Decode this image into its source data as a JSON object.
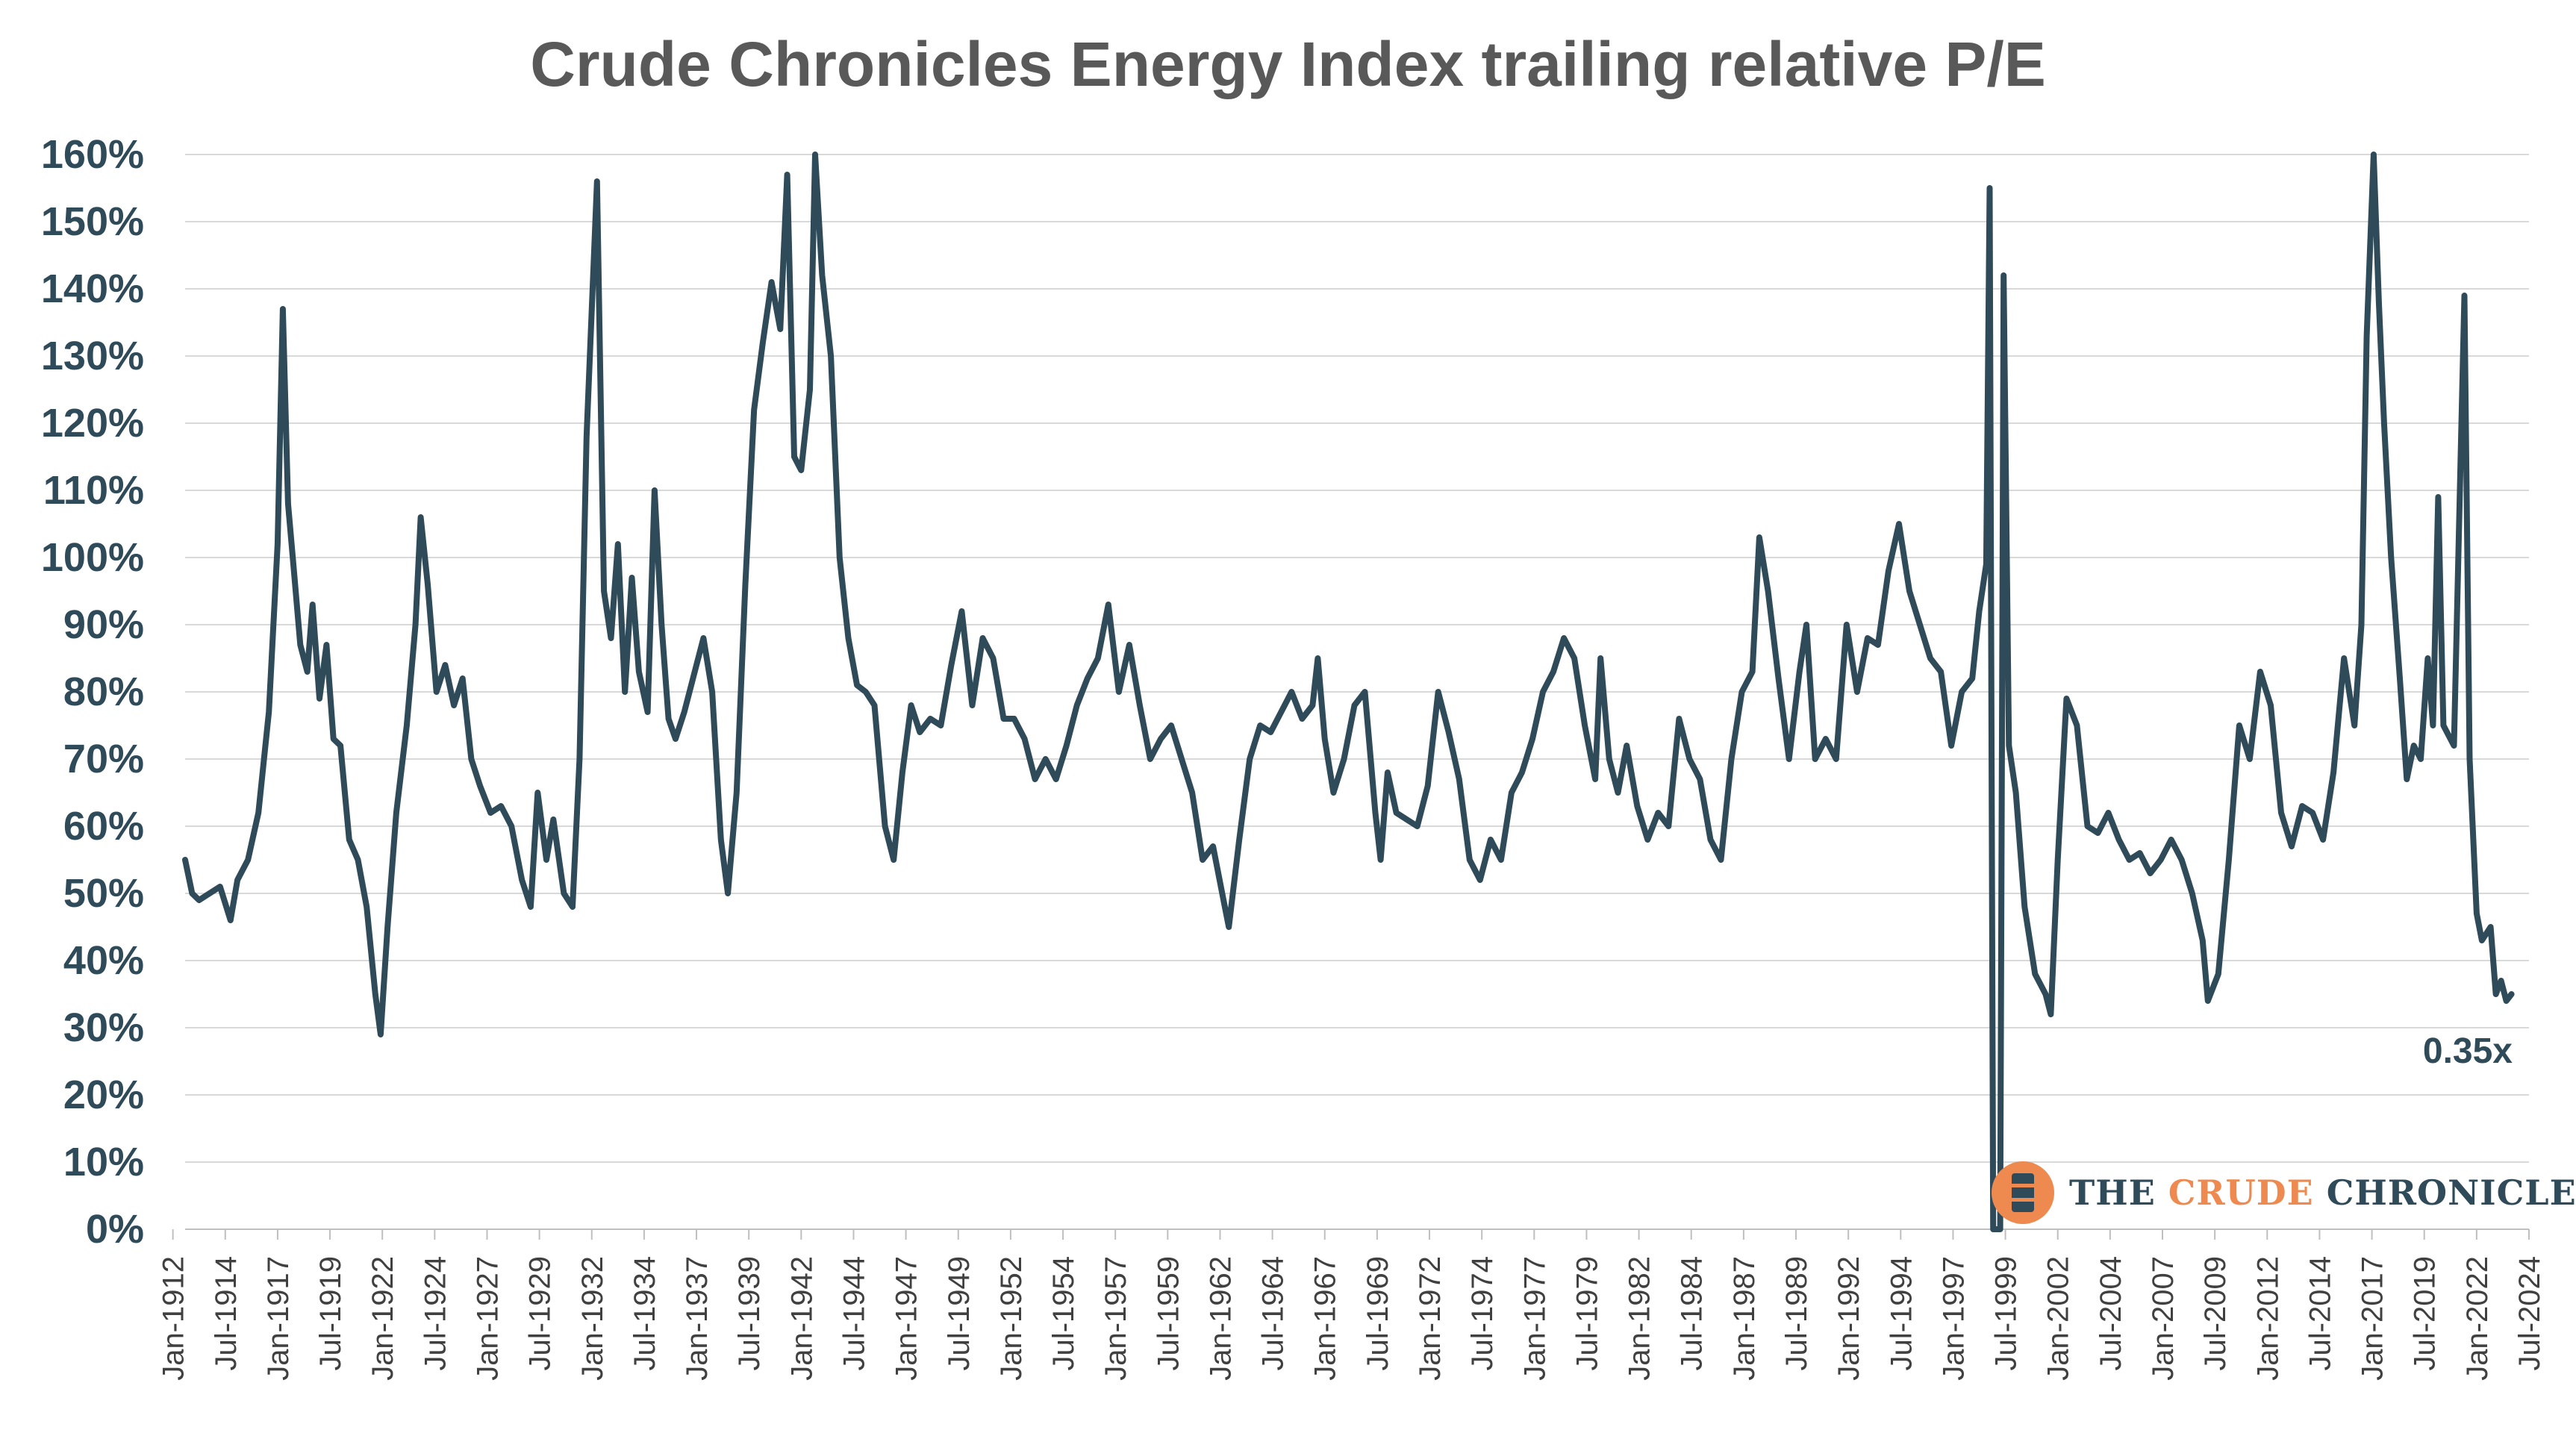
{
  "chart_data": {
    "type": "line",
    "title": "Crude Chronicles Energy Index trailing relative P/E",
    "xlabel": "",
    "ylabel": "",
    "ylim": [
      0,
      1.6
    ],
    "y_tick_labels": [
      "0%",
      "10%",
      "20%",
      "30%",
      "40%",
      "50%",
      "60%",
      "70%",
      "80%",
      "90%",
      "100%",
      "110%",
      "120%",
      "130%",
      "140%",
      "150%",
      "160%"
    ],
    "x_tick_labels": [
      "Jan-1912",
      "Jul-1914",
      "Jan-1917",
      "Jul-1919",
      "Jan-1922",
      "Jul-1924",
      "Jan-1927",
      "Jul-1929",
      "Jan-1932",
      "Jul-1934",
      "Jan-1937",
      "Jul-1939",
      "Jan-1942",
      "Jul-1944",
      "Jan-1947",
      "Jul-1949",
      "Jan-1952",
      "Jul-1954",
      "Jan-1957",
      "Jul-1959",
      "Jan-1962",
      "Jul-1964",
      "Jan-1967",
      "Jul-1969",
      "Jan-1972",
      "Jul-1974",
      "Jan-1977",
      "Jul-1979",
      "Jan-1982",
      "Jul-1984",
      "Jan-1987",
      "Jul-1989",
      "Jan-1992",
      "Jul-1994",
      "Jan-1997",
      "Jul-1999",
      "Jan-2002",
      "Jul-2004",
      "Jan-2007",
      "Jul-2009",
      "Jan-2012",
      "Jul-2014",
      "Jan-2017",
      "Jul-2019",
      "Jan-2022",
      "Jul-2024"
    ],
    "grid": true,
    "line_color": "#2f4a58",
    "annotation": "0.35x",
    "series": [
      {
        "values": [
          [
            "1912-08",
            0.55
          ],
          [
            "1912-12",
            0.5
          ],
          [
            "1913-04",
            0.49
          ],
          [
            "1913-10",
            0.5
          ],
          [
            "1914-04",
            0.51
          ],
          [
            "1914-10",
            0.46
          ],
          [
            "1915-02",
            0.52
          ],
          [
            "1915-08",
            0.55
          ],
          [
            "1916-02",
            0.62
          ],
          [
            "1916-08",
            0.77
          ],
          [
            "1917-01",
            1.02
          ],
          [
            "1917-04",
            1.37
          ],
          [
            "1917-07",
            1.08
          ],
          [
            "1917-10",
            0.99
          ],
          [
            "1918-02",
            0.87
          ],
          [
            "1918-06",
            0.83
          ],
          [
            "1918-09",
            0.93
          ],
          [
            "1919-01",
            0.79
          ],
          [
            "1919-05",
            0.87
          ],
          [
            "1919-09",
            0.73
          ],
          [
            "1920-01",
            0.72
          ],
          [
            "1920-06",
            0.58
          ],
          [
            "1920-11",
            0.55
          ],
          [
            "1921-04",
            0.48
          ],
          [
            "1921-09",
            0.35
          ],
          [
            "1921-12",
            0.29
          ],
          [
            "1922-04",
            0.45
          ],
          [
            "1922-09",
            0.62
          ],
          [
            "1923-03",
            0.75
          ],
          [
            "1923-08",
            0.9
          ],
          [
            "1923-11",
            1.06
          ],
          [
            "1924-03",
            0.96
          ],
          [
            "1924-08",
            0.8
          ],
          [
            "1925-01",
            0.84
          ],
          [
            "1925-06",
            0.78
          ],
          [
            "1925-11",
            0.82
          ],
          [
            "1926-04",
            0.7
          ],
          [
            "1926-09",
            0.66
          ],
          [
            "1927-03",
            0.62
          ],
          [
            "1927-09",
            0.63
          ],
          [
            "1928-03",
            0.6
          ],
          [
            "1928-09",
            0.52
          ],
          [
            "1929-02",
            0.48
          ],
          [
            "1929-06",
            0.65
          ],
          [
            "1929-11",
            0.55
          ],
          [
            "1930-03",
            0.61
          ],
          [
            "1930-09",
            0.5
          ],
          [
            "1931-02",
            0.48
          ],
          [
            "1931-06",
            0.7
          ],
          [
            "1931-10",
            1.18
          ],
          [
            "1932-04",
            1.56
          ],
          [
            "1932-08",
            0.95
          ],
          [
            "1932-12",
            0.88
          ],
          [
            "1933-04",
            1.02
          ],
          [
            "1933-08",
            0.8
          ],
          [
            "1933-12",
            0.97
          ],
          [
            "1934-04",
            0.83
          ],
          [
            "1934-09",
            0.77
          ],
          [
            "1935-01",
            1.1
          ],
          [
            "1935-05",
            0.9
          ],
          [
            "1935-09",
            0.76
          ],
          [
            "1936-01",
            0.73
          ],
          [
            "1936-06",
            0.77
          ],
          [
            "1936-12",
            0.83
          ],
          [
            "1937-05",
            0.88
          ],
          [
            "1937-10",
            0.8
          ],
          [
            "1938-03",
            0.58
          ],
          [
            "1938-07",
            0.5
          ],
          [
            "1938-12",
            0.65
          ],
          [
            "1939-05",
            0.96
          ],
          [
            "1939-10",
            1.22
          ],
          [
            "1940-03",
            1.32
          ],
          [
            "1940-08",
            1.41
          ],
          [
            "1941-01",
            1.34
          ],
          [
            "1941-05",
            1.57
          ],
          [
            "1941-09",
            1.15
          ],
          [
            "1942-01",
            1.13
          ],
          [
            "1942-06",
            1.25
          ],
          [
            "1942-09",
            1.6
          ],
          [
            "1943-01",
            1.42
          ],
          [
            "1943-06",
            1.3
          ],
          [
            "1943-11",
            1.0
          ],
          [
            "1944-04",
            0.88
          ],
          [
            "1944-09",
            0.81
          ],
          [
            "1945-02",
            0.8
          ],
          [
            "1945-07",
            0.78
          ],
          [
            "1946-01",
            0.6
          ],
          [
            "1946-06",
            0.55
          ],
          [
            "1946-11",
            0.68
          ],
          [
            "1947-04",
            0.78
          ],
          [
            "1947-09",
            0.74
          ],
          [
            "1948-03",
            0.76
          ],
          [
            "1948-09",
            0.75
          ],
          [
            "1949-03",
            0.84
          ],
          [
            "1949-09",
            0.92
          ],
          [
            "1950-03",
            0.78
          ],
          [
            "1950-09",
            0.88
          ],
          [
            "1951-03",
            0.85
          ],
          [
            "1951-09",
            0.76
          ],
          [
            "1952-03",
            0.76
          ],
          [
            "1952-09",
            0.73
          ],
          [
            "1953-03",
            0.67
          ],
          [
            "1953-09",
            0.7
          ],
          [
            "1954-03",
            0.67
          ],
          [
            "1954-09",
            0.72
          ],
          [
            "1955-03",
            0.78
          ],
          [
            "1955-09",
            0.82
          ],
          [
            "1956-03",
            0.85
          ],
          [
            "1956-09",
            0.93
          ],
          [
            "1957-03",
            0.8
          ],
          [
            "1957-09",
            0.87
          ],
          [
            "1958-03",
            0.78
          ],
          [
            "1958-09",
            0.7
          ],
          [
            "1959-03",
            0.73
          ],
          [
            "1959-09",
            0.75
          ],
          [
            "1960-03",
            0.7
          ],
          [
            "1960-09",
            0.65
          ],
          [
            "1961-03",
            0.55
          ],
          [
            "1961-09",
            0.57
          ],
          [
            "1962-03",
            0.49
          ],
          [
            "1962-06",
            0.45
          ],
          [
            "1962-12",
            0.58
          ],
          [
            "1963-06",
            0.7
          ],
          [
            "1963-12",
            0.75
          ],
          [
            "1964-06",
            0.74
          ],
          [
            "1964-12",
            0.77
          ],
          [
            "1965-06",
            0.8
          ],
          [
            "1965-12",
            0.76
          ],
          [
            "1966-06",
            0.78
          ],
          [
            "1966-09",
            0.85
          ],
          [
            "1967-01",
            0.73
          ],
          [
            "1967-06",
            0.65
          ],
          [
            "1967-12",
            0.7
          ],
          [
            "1968-06",
            0.78
          ],
          [
            "1968-12",
            0.8
          ],
          [
            "1969-06",
            0.62
          ],
          [
            "1969-09",
            0.55
          ],
          [
            "1970-01",
            0.68
          ],
          [
            "1970-06",
            0.62
          ],
          [
            "1970-12",
            0.61
          ],
          [
            "1971-06",
            0.6
          ],
          [
            "1971-12",
            0.66
          ],
          [
            "1972-06",
            0.8
          ],
          [
            "1972-12",
            0.74
          ],
          [
            "1973-06",
            0.67
          ],
          [
            "1973-12",
            0.55
          ],
          [
            "1974-06",
            0.52
          ],
          [
            "1974-12",
            0.58
          ],
          [
            "1975-06",
            0.55
          ],
          [
            "1975-12",
            0.65
          ],
          [
            "1976-06",
            0.68
          ],
          [
            "1976-12",
            0.73
          ],
          [
            "1977-06",
            0.8
          ],
          [
            "1977-12",
            0.83
          ],
          [
            "1978-06",
            0.88
          ],
          [
            "1978-12",
            0.85
          ],
          [
            "1979-06",
            0.75
          ],
          [
            "1979-12",
            0.67
          ],
          [
            "1980-03",
            0.85
          ],
          [
            "1980-08",
            0.7
          ],
          [
            "1981-01",
            0.65
          ],
          [
            "1981-06",
            0.72
          ],
          [
            "1981-12",
            0.63
          ],
          [
            "1982-06",
            0.58
          ],
          [
            "1982-12",
            0.62
          ],
          [
            "1983-06",
            0.6
          ],
          [
            "1983-12",
            0.76
          ],
          [
            "1984-06",
            0.7
          ],
          [
            "1984-12",
            0.67
          ],
          [
            "1985-06",
            0.58
          ],
          [
            "1985-12",
            0.55
          ],
          [
            "1986-06",
            0.7
          ],
          [
            "1986-12",
            0.8
          ],
          [
            "1987-06",
            0.83
          ],
          [
            "1987-10",
            1.03
          ],
          [
            "1988-03",
            0.95
          ],
          [
            "1988-09",
            0.82
          ],
          [
            "1989-03",
            0.7
          ],
          [
            "1989-09",
            0.83
          ],
          [
            "1990-01",
            0.9
          ],
          [
            "1990-06",
            0.7
          ],
          [
            "1990-12",
            0.73
          ],
          [
            "1991-06",
            0.7
          ],
          [
            "1991-12",
            0.9
          ],
          [
            "1992-06",
            0.8
          ],
          [
            "1992-12",
            0.88
          ],
          [
            "1993-06",
            0.87
          ],
          [
            "1993-12",
            0.98
          ],
          [
            "1994-06",
            1.05
          ],
          [
            "1994-12",
            0.95
          ],
          [
            "1995-06",
            0.9
          ],
          [
            "1995-12",
            0.85
          ],
          [
            "1996-06",
            0.83
          ],
          [
            "1996-12",
            0.72
          ],
          [
            "1997-06",
            0.8
          ],
          [
            "1997-12",
            0.82
          ],
          [
            "1998-04",
            0.92
          ],
          [
            "1998-08",
            0.99
          ],
          [
            "1998-10",
            1.55
          ],
          [
            "1998-12",
            0.0
          ],
          [
            "1999-04",
            0.0
          ],
          [
            "1999-06",
            1.42
          ],
          [
            "1999-09",
            0.72
          ],
          [
            "2000-01",
            0.65
          ],
          [
            "2000-06",
            0.48
          ],
          [
            "2000-12",
            0.38
          ],
          [
            "2001-06",
            0.35
          ],
          [
            "2001-09",
            0.32
          ],
          [
            "2002-01",
            0.55
          ],
          [
            "2002-06",
            0.79
          ],
          [
            "2002-12",
            0.75
          ],
          [
            "2003-06",
            0.6
          ],
          [
            "2003-12",
            0.59
          ],
          [
            "2004-06",
            0.62
          ],
          [
            "2004-12",
            0.58
          ],
          [
            "2005-06",
            0.55
          ],
          [
            "2005-12",
            0.56
          ],
          [
            "2006-06",
            0.53
          ],
          [
            "2006-12",
            0.55
          ],
          [
            "2007-06",
            0.58
          ],
          [
            "2007-12",
            0.55
          ],
          [
            "2008-06",
            0.5
          ],
          [
            "2008-12",
            0.43
          ],
          [
            "2009-03",
            0.34
          ],
          [
            "2009-09",
            0.38
          ],
          [
            "2010-03",
            0.55
          ],
          [
            "2010-09",
            0.75
          ],
          [
            "2011-03",
            0.7
          ],
          [
            "2011-09",
            0.83
          ],
          [
            "2012-03",
            0.78
          ],
          [
            "2012-09",
            0.62
          ],
          [
            "2013-03",
            0.57
          ],
          [
            "2013-09",
            0.63
          ],
          [
            "2014-03",
            0.62
          ],
          [
            "2014-09",
            0.58
          ],
          [
            "2015-03",
            0.68
          ],
          [
            "2015-09",
            0.85
          ],
          [
            "2016-03",
            0.75
          ],
          [
            "2016-07",
            0.9
          ],
          [
            "2016-10",
            1.33
          ],
          [
            "2017-02",
            1.6
          ],
          [
            "2017-05",
            1.38
          ],
          [
            "2017-08",
            1.2
          ],
          [
            "2017-12",
            1.0
          ],
          [
            "2018-05",
            0.82
          ],
          [
            "2018-09",
            0.67
          ],
          [
            "2019-01",
            0.72
          ],
          [
            "2019-05",
            0.7
          ],
          [
            "2019-09",
            0.85
          ],
          [
            "2019-12",
            0.75
          ],
          [
            "2020-03",
            1.09
          ],
          [
            "2020-06",
            0.75
          ],
          [
            "2020-12",
            0.72
          ],
          [
            "2021-06",
            1.39
          ],
          [
            "2021-09",
            0.7
          ],
          [
            "2022-01",
            0.47
          ],
          [
            "2022-04",
            0.43
          ],
          [
            "2022-09",
            0.45
          ],
          [
            "2022-12",
            0.35
          ],
          [
            "2023-03",
            0.37
          ],
          [
            "2023-06",
            0.34
          ],
          [
            "2023-09",
            0.35
          ]
        ]
      }
    ]
  },
  "logo": {
    "word1": "THE",
    "word2": "CRUDE",
    "word3": "CHRONICLES"
  }
}
